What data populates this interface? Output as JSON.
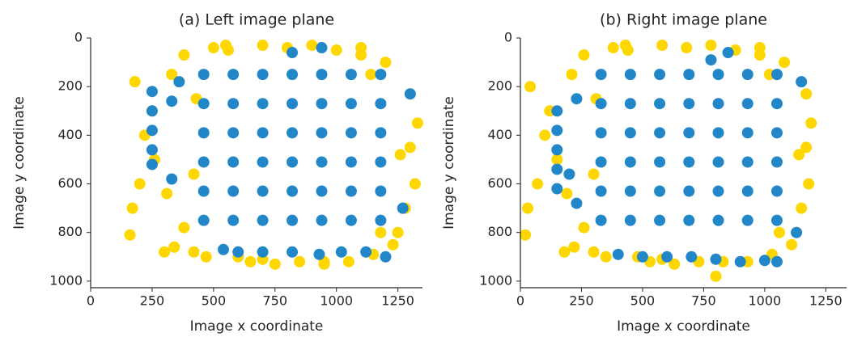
{
  "chart_data": [
    {
      "type": "scatter",
      "title": "(a) Left image plane",
      "x_label": "Image x coordinate",
      "y_label": "Image y coordinate",
      "xlim": [
        0,
        1350
      ],
      "ylim": [
        0,
        1027
      ],
      "y_inverted": true,
      "xticks": [
        0,
        250,
        500,
        750,
        1000,
        1250
      ],
      "yticks": [
        0,
        200,
        400,
        600,
        800,
        1000
      ],
      "series": [
        {
          "color": "#ffd700",
          "x": [
            160,
            170,
            180,
            250,
            260,
            300,
            310,
            330,
            340,
            380,
            420,
            430,
            470,
            500,
            550,
            600,
            650,
            700,
            750,
            800,
            850,
            900,
            950,
            1000,
            1050,
            1100,
            1150,
            1200,
            1250,
            1300,
            1320,
            1330,
            1280,
            1260,
            1230,
            1180,
            1140,
            200,
            220,
            380,
            700,
            950,
            1100,
            1300,
            420,
            560
          ],
          "values": [
            810,
            700,
            180,
            300,
            500,
            880,
            640,
            150,
            860,
            70,
            880,
            250,
            900,
            40,
            30,
            900,
            920,
            30,
            930,
            40,
            920,
            30,
            920,
            50,
            920,
            70,
            890,
            100,
            800,
            230,
            600,
            350,
            700,
            480,
            850,
            800,
            150,
            600,
            400,
            780,
            910,
            930,
            40,
            450,
            560,
            50
          ]
        },
        {
          "color": "#2287c8",
          "x": [
            460,
            580,
            700,
            820,
            940,
            1060,
            1180,
            460,
            580,
            700,
            820,
            940,
            1060,
            1180,
            460,
            580,
            700,
            820,
            940,
            1060,
            1180,
            460,
            580,
            700,
            820,
            940,
            1060,
            1180,
            460,
            580,
            700,
            820,
            940,
            1060,
            1180,
            460,
            580,
            700,
            820,
            940,
            1060,
            1180,
            250,
            250,
            250,
            250,
            250,
            330,
            330,
            540,
            600,
            700,
            820,
            930,
            1020,
            1120,
            1200,
            940,
            820,
            1300,
            1270,
            360
          ],
          "values": [
            150,
            150,
            150,
            150,
            150,
            150,
            150,
            270,
            270,
            270,
            270,
            270,
            270,
            270,
            390,
            390,
            390,
            390,
            390,
            390,
            390,
            510,
            510,
            510,
            510,
            510,
            510,
            510,
            630,
            630,
            630,
            630,
            630,
            630,
            630,
            750,
            750,
            750,
            750,
            750,
            750,
            750,
            220,
            300,
            380,
            460,
            520,
            260,
            580,
            870,
            880,
            880,
            880,
            890,
            880,
            880,
            900,
            40,
            60,
            230,
            700,
            180
          ]
        }
      ]
    },
    {
      "type": "scatter",
      "title": "(b) Right image plane",
      "x_label": "Image x coordinate",
      "y_label": "Image y coordinate",
      "xlim": [
        0,
        1335
      ],
      "ylim": [
        0,
        1027
      ],
      "y_inverted": true,
      "xticks": [
        0,
        250,
        500,
        750,
        1000,
        1250
      ],
      "yticks": [
        0,
        200,
        400,
        600,
        800,
        1000
      ],
      "series": [
        {
          "color": "#ffd700",
          "x": [
            20,
            30,
            40,
            120,
            150,
            180,
            190,
            210,
            220,
            260,
            300,
            310,
            350,
            380,
            430,
            480,
            530,
            580,
            630,
            680,
            730,
            780,
            830,
            880,
            930,
            980,
            1030,
            1080,
            1130,
            1170,
            1180,
            1190,
            1150,
            1140,
            1110,
            1060,
            1020,
            70,
            100,
            260,
            580,
            800,
            980,
            1170,
            300,
            440
          ],
          "values": [
            810,
            700,
            200,
            300,
            500,
            880,
            640,
            150,
            860,
            70,
            880,
            250,
            900,
            40,
            30,
            900,
            920,
            30,
            930,
            40,
            920,
            30,
            920,
            50,
            920,
            70,
            890,
            100,
            800,
            230,
            600,
            350,
            700,
            480,
            850,
            800,
            150,
            600,
            400,
            780,
            910,
            980,
            40,
            450,
            560,
            50
          ]
        },
        {
          "color": "#2287c8",
          "x": [
            330,
            450,
            570,
            690,
            810,
            930,
            1050,
            330,
            450,
            570,
            690,
            810,
            930,
            1050,
            330,
            450,
            570,
            690,
            810,
            930,
            1050,
            330,
            450,
            570,
            690,
            810,
            930,
            1050,
            330,
            450,
            570,
            690,
            810,
            930,
            1050,
            330,
            450,
            570,
            690,
            810,
            930,
            1050,
            150,
            150,
            150,
            150,
            150,
            230,
            230,
            400,
            500,
            600,
            700,
            800,
            900,
            1000,
            1050,
            850,
            780,
            1150,
            1130,
            200
          ],
          "values": [
            150,
            150,
            150,
            150,
            150,
            150,
            150,
            270,
            270,
            270,
            270,
            270,
            270,
            270,
            390,
            390,
            390,
            390,
            390,
            390,
            390,
            510,
            510,
            510,
            510,
            510,
            510,
            510,
            630,
            630,
            630,
            630,
            630,
            630,
            630,
            750,
            750,
            750,
            750,
            750,
            750,
            750,
            300,
            380,
            460,
            540,
            620,
            250,
            680,
            890,
            900,
            900,
            900,
            910,
            920,
            915,
            920,
            60,
            90,
            180,
            800,
            560
          ]
        }
      ]
    }
  ]
}
